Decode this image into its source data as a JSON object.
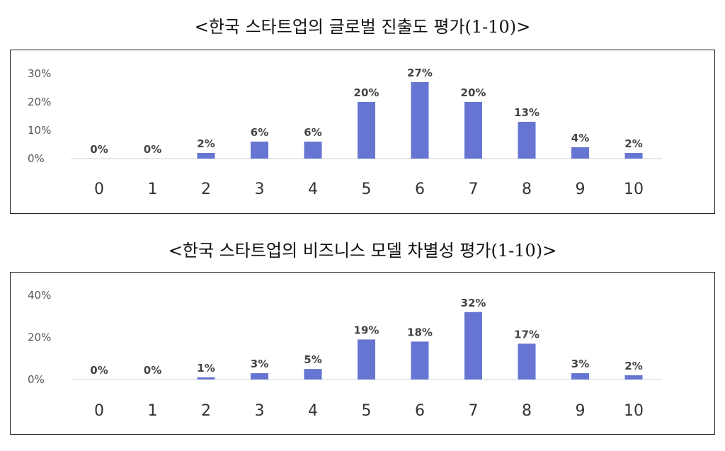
{
  "chart_data": [
    {
      "type": "bar",
      "title": "<한국 스타트업의 글로벌 진출도 평가(1-10)>",
      "categories": [
        "0",
        "1",
        "2",
        "3",
        "4",
        "5",
        "6",
        "7",
        "8",
        "9",
        "10"
      ],
      "values": [
        0,
        0,
        2,
        6,
        6,
        20,
        27,
        20,
        13,
        4,
        2
      ],
      "data_labels": [
        "0%",
        "0%",
        "2%",
        "6%",
        "6%",
        "20%",
        "27%",
        "20%",
        "13%",
        "4%",
        "2%"
      ],
      "ylim": [
        0,
        30
      ],
      "yticks": [
        0,
        10,
        20,
        30
      ],
      "ytick_labels": [
        "0%",
        "10%",
        "20%",
        "30%"
      ],
      "grid": false,
      "bar_color": "#6675D1"
    },
    {
      "type": "bar",
      "title": "<한국 스타트업의 비즈니스 모델 차별성 평가(1-10)>",
      "categories": [
        "0",
        "1",
        "2",
        "3",
        "4",
        "5",
        "6",
        "7",
        "8",
        "9",
        "10"
      ],
      "values": [
        0,
        0,
        1,
        3,
        5,
        19,
        18,
        32,
        17,
        3,
        2
      ],
      "data_labels": [
        "0%",
        "0%",
        "1%",
        "3%",
        "5%",
        "19%",
        "18%",
        "32%",
        "17%",
        "3%",
        "2%"
      ],
      "ylim": [
        0,
        40
      ],
      "yticks": [
        0,
        20,
        40
      ],
      "ytick_labels": [
        "0%",
        "20%",
        "40%"
      ],
      "grid": false,
      "bar_color": "#6675D1"
    }
  ]
}
